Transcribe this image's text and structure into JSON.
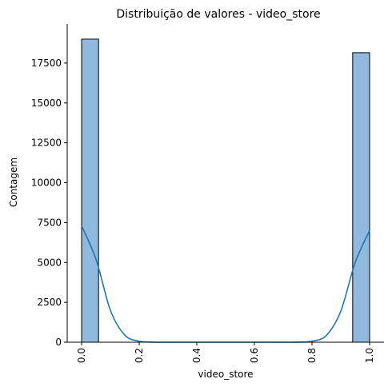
{
  "chart_data": {
    "type": "bar",
    "title": "Distribuição de valores - video_store",
    "xlabel": "video_store",
    "ylabel": "Contagem",
    "xlim": [
      -0.05,
      1.05
    ],
    "ylim": [
      0,
      19950
    ],
    "x_ticks": [
      "0.0",
      "0.2",
      "0.4",
      "0.6",
      "0.8",
      "1.0"
    ],
    "x_tick_values": [
      0,
      0.2,
      0.4,
      0.6,
      0.8,
      1.0
    ],
    "y_ticks": [
      "0",
      "2500",
      "5000",
      "7500",
      "10000",
      "12500",
      "15000",
      "17500"
    ],
    "y_tick_values": [
      0,
      2500,
      5000,
      7500,
      10000,
      12500,
      15000,
      17500
    ],
    "bins": [
      {
        "x0": 0.0,
        "x1": 0.0588,
        "count": 19000
      },
      {
        "x0": 0.9412,
        "x1": 1.0,
        "count": 18150
      }
    ],
    "kde": {
      "x": [
        0,
        0.05,
        0.1,
        0.15,
        0.2,
        0.25,
        0.3,
        0.35,
        0.4,
        0.5,
        0.6,
        0.65,
        0.7,
        0.75,
        0.8,
        0.85,
        0.9,
        0.95,
        1.0
      ],
      "y": [
        7300,
        5200,
        2000,
        450,
        60,
        5,
        0,
        0,
        0,
        0,
        0,
        0,
        0,
        5,
        60,
        430,
        1950,
        5000,
        7000
      ]
    },
    "bar_color": "#8fb9dd",
    "line_color": "#1f77b4",
    "grid": false,
    "legend": "none"
  }
}
